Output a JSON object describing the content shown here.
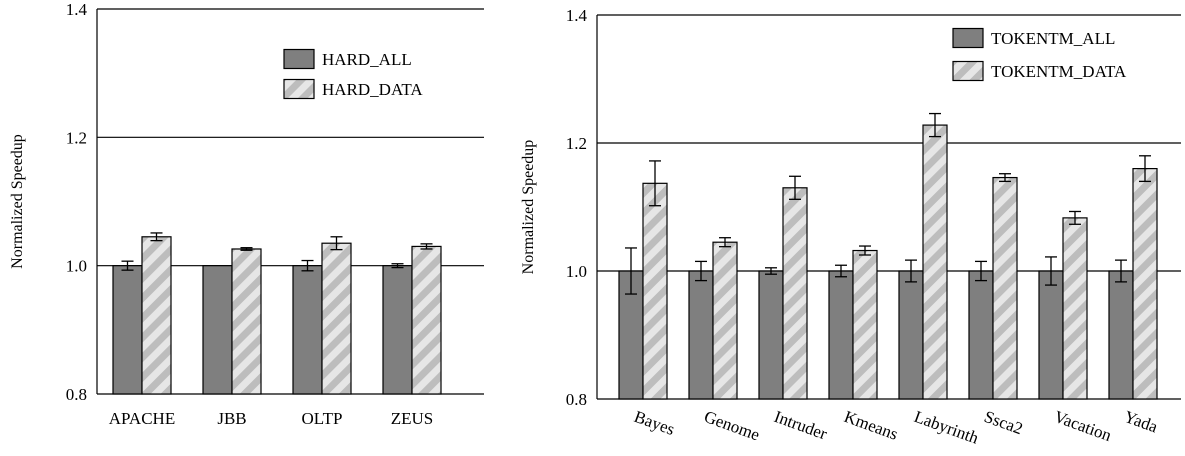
{
  "colors": {
    "solid_fill": "#7f7f7f",
    "hatch_bg": "#e6e6e6",
    "hatch_stripe": "#bdbdbd",
    "stroke": "#000000"
  },
  "chart_data": [
    {
      "type": "bar",
      "title": "",
      "xlabel": "",
      "ylabel": "Normalized Speedup",
      "ylim": [
        0.8,
        1.4
      ],
      "yticks": [
        "0.8",
        "1.0",
        "1.2",
        "1.4"
      ],
      "ytick_values": [
        0.8,
        1.0,
        1.2,
        1.4
      ],
      "grid": "horizontal",
      "legend_position": "top-right",
      "rotate_categories": false,
      "categories": [
        "APACHE",
        "JBB",
        "OLTP",
        "ZEUS"
      ],
      "series": [
        {
          "name": "HARD_ALL",
          "style": "solid",
          "values": [
            1.0,
            1.0,
            1.0,
            1.0
          ],
          "errors": [
            0.007,
            0.0,
            0.008,
            0.003
          ]
        },
        {
          "name": "HARD_DATA",
          "style": "hatch",
          "values": [
            1.045,
            1.026,
            1.035,
            1.03
          ],
          "errors": [
            0.006,
            0.002,
            0.01,
            0.004
          ]
        }
      ]
    },
    {
      "type": "bar",
      "title": "",
      "xlabel": "",
      "ylabel": "Normalized Speedup",
      "ylim": [
        0.8,
        1.4
      ],
      "yticks": [
        "0.8",
        "1.0",
        "1.2",
        "1.4"
      ],
      "ytick_values": [
        0.8,
        1.0,
        1.2,
        1.4
      ],
      "grid": "horizontal",
      "legend_position": "top-right",
      "rotate_categories": true,
      "categories": [
        "Bayes",
        "Genome",
        "Intruder",
        "Kmeans",
        "Labyrinth",
        "Ssca2",
        "Vacation",
        "Yada"
      ],
      "series": [
        {
          "name": "TOKENTM_ALL",
          "style": "solid",
          "values": [
            1.0,
            1.0,
            1.0,
            1.0,
            1.0,
            1.0,
            1.0,
            1.0
          ],
          "errors": [
            0.036,
            0.015,
            0.005,
            0.009,
            0.017,
            0.015,
            0.022,
            0.017
          ]
        },
        {
          "name": "TOKENTM_DATA",
          "style": "hatch",
          "values": [
            1.137,
            1.045,
            1.13,
            1.032,
            1.228,
            1.146,
            1.083,
            1.16
          ],
          "errors": [
            0.035,
            0.007,
            0.018,
            0.007,
            0.018,
            0.006,
            0.01,
            0.02
          ]
        }
      ]
    }
  ]
}
